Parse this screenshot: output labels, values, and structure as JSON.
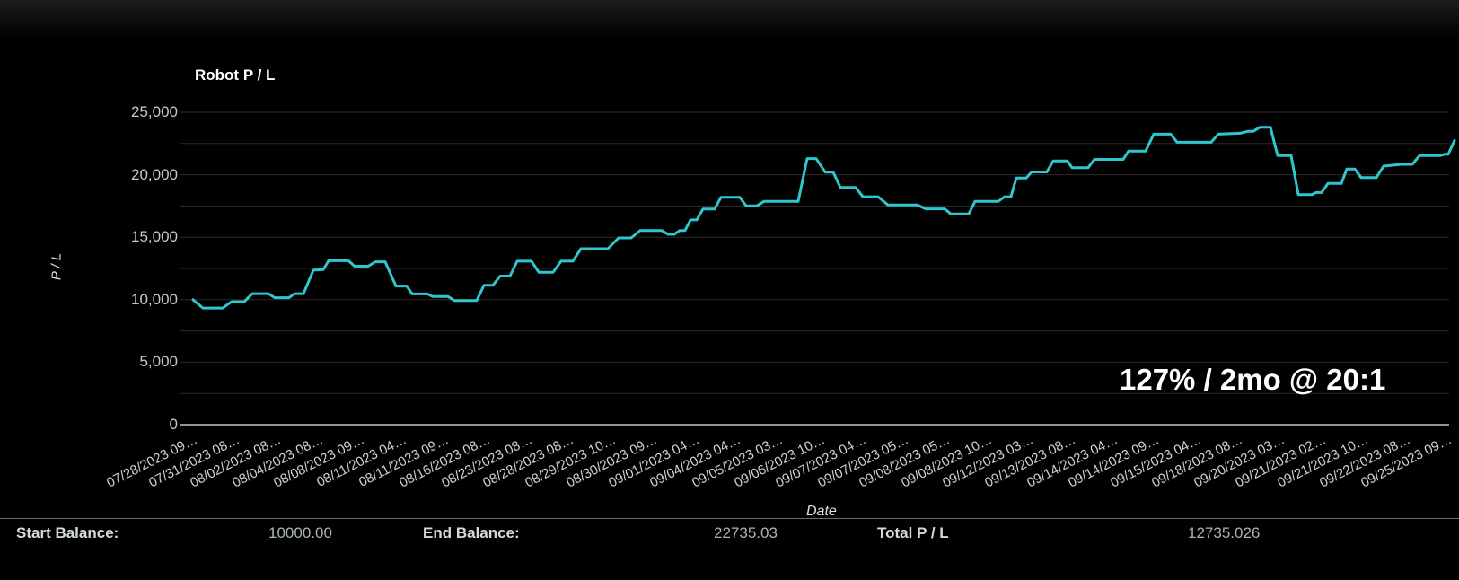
{
  "chart": {
    "title": "Robot P / L",
    "y_axis_title": "P / L",
    "x_axis_title": "Date",
    "annotation": "127% / 2mo @ 20:1"
  },
  "chart_data": {
    "type": "line",
    "title": "Robot P / L",
    "xlabel": "Date",
    "ylabel": "P / L",
    "ylim": [
      0,
      25000
    ],
    "y_gridline_interval": 2500,
    "y_label_interval": 5000,
    "y_tick_labels": [
      "0",
      "5,000",
      "10,000",
      "15,000",
      "20,000",
      "25,000"
    ],
    "grid": true,
    "legend": false,
    "x_tick_labels": [
      "07/28/2023 09…",
      "07/31/2023 08…",
      "08/02/2023 08…",
      "08/04/2023 08…",
      "08/08/2023 09…",
      "08/11/2023 04…",
      "08/11/2023 09…",
      "08/16/2023 08…",
      "08/23/2023 08…",
      "08/28/2023 08…",
      "08/29/2023 10…",
      "08/30/2023 09…",
      "09/01/2023 04…",
      "09/04/2023 04…",
      "09/05/2023 03…",
      "09/06/2023 10…",
      "09/07/2023 04…",
      "09/07/2023 05…",
      "09/08/2023 05…",
      "09/08/2023 10…",
      "09/12/2023 03…",
      "09/13/2023 08…",
      "09/14/2023 04…",
      "09/14/2023 09…",
      "09/15/2023 04…",
      "09/18/2023 08…",
      "09/20/2023 03…",
      "09/21/2023 02…",
      "09/21/2023 10…",
      "09/22/2023 08…",
      "09/25/2023 09…"
    ],
    "x_unit": "screen-px of digitized polyline (plot spans x 215 to 1620)",
    "series": [
      {
        "name": "Robot P / L",
        "color": "#2ec7ce",
        "start_value": 10000,
        "end_value": 22735,
        "points": [
          [
            215,
            9990
          ],
          [
            226,
            9330
          ],
          [
            248,
            9330
          ],
          [
            258,
            9840
          ],
          [
            272,
            9840
          ],
          [
            281,
            10480
          ],
          [
            299,
            10480
          ],
          [
            306,
            10160
          ],
          [
            322,
            10160
          ],
          [
            328,
            10480
          ],
          [
            338,
            10480
          ],
          [
            349,
            12360
          ],
          [
            360,
            12410
          ],
          [
            366,
            13120
          ],
          [
            388,
            13120
          ],
          [
            395,
            12680
          ],
          [
            410,
            12680
          ],
          [
            418,
            13030
          ],
          [
            429,
            13030
          ],
          [
            441,
            11090
          ],
          [
            453,
            11090
          ],
          [
            459,
            10460
          ],
          [
            476,
            10460
          ],
          [
            482,
            10250
          ],
          [
            499,
            10250
          ],
          [
            506,
            9930
          ],
          [
            531,
            9930
          ],
          [
            539,
            11160
          ],
          [
            549,
            11160
          ],
          [
            557,
            11890
          ],
          [
            568,
            11890
          ],
          [
            576,
            13080
          ],
          [
            592,
            13080
          ],
          [
            600,
            12200
          ],
          [
            616,
            12200
          ],
          [
            625,
            13080
          ],
          [
            638,
            13080
          ],
          [
            647,
            14080
          ],
          [
            677,
            14080
          ],
          [
            689,
            14940
          ],
          [
            703,
            14940
          ],
          [
            713,
            15540
          ],
          [
            737,
            15540
          ],
          [
            744,
            15230
          ],
          [
            751,
            15230
          ],
          [
            757,
            15540
          ],
          [
            763,
            15540
          ],
          [
            769,
            16390
          ],
          [
            776,
            16390
          ],
          [
            783,
            17260
          ],
          [
            796,
            17260
          ],
          [
            803,
            18200
          ],
          [
            824,
            18200
          ],
          [
            831,
            17510
          ],
          [
            843,
            17510
          ],
          [
            851,
            17870
          ],
          [
            889,
            17870
          ],
          [
            899,
            21290
          ],
          [
            909,
            21290
          ],
          [
            919,
            20210
          ],
          [
            928,
            20210
          ],
          [
            936,
            18980
          ],
          [
            953,
            18980
          ],
          [
            961,
            18240
          ],
          [
            978,
            18240
          ],
          [
            989,
            17580
          ],
          [
            1022,
            17580
          ],
          [
            1031,
            17270
          ],
          [
            1052,
            17270
          ],
          [
            1059,
            16870
          ],
          [
            1079,
            16870
          ],
          [
            1086,
            17870
          ],
          [
            1112,
            17870
          ],
          [
            1119,
            18240
          ],
          [
            1126,
            18240
          ],
          [
            1132,
            19740
          ],
          [
            1143,
            19740
          ],
          [
            1149,
            20220
          ],
          [
            1166,
            20220
          ],
          [
            1173,
            21100
          ],
          [
            1189,
            21100
          ],
          [
            1194,
            20570
          ],
          [
            1212,
            20570
          ],
          [
            1219,
            21230
          ],
          [
            1251,
            21230
          ],
          [
            1257,
            21900
          ],
          [
            1276,
            21900
          ],
          [
            1285,
            23250
          ],
          [
            1304,
            23250
          ],
          [
            1311,
            22600
          ],
          [
            1349,
            22600
          ],
          [
            1357,
            23250
          ],
          [
            1381,
            23320
          ],
          [
            1390,
            23480
          ],
          [
            1396,
            23480
          ],
          [
            1403,
            23790
          ],
          [
            1415,
            23790
          ],
          [
            1423,
            21530
          ],
          [
            1438,
            21530
          ],
          [
            1446,
            18410
          ],
          [
            1461,
            18410
          ],
          [
            1466,
            18580
          ],
          [
            1472,
            18580
          ],
          [
            1479,
            19300
          ],
          [
            1494,
            19300
          ],
          [
            1500,
            20450
          ],
          [
            1509,
            20450
          ],
          [
            1516,
            19770
          ],
          [
            1533,
            19770
          ],
          [
            1541,
            20690
          ],
          [
            1561,
            20830
          ],
          [
            1573,
            20830
          ],
          [
            1581,
            21530
          ],
          [
            1604,
            21530
          ],
          [
            1609,
            21640
          ],
          [
            1613,
            21640
          ],
          [
            1620,
            22735
          ]
        ]
      }
    ]
  },
  "footer": {
    "items": [
      {
        "label": "Start Balance:",
        "value": "10000.00"
      },
      {
        "label": "End Balance:",
        "value": "22735.03"
      },
      {
        "label": "Total P / L",
        "value": "12735.026"
      }
    ]
  },
  "colors": {
    "background": "#000000",
    "accent_line": "#2ec7ce",
    "gridline": "#2b2b2b",
    "zero_axis": "#8f969a",
    "tick_text": "#d0d0d0",
    "title_text": "#ffffff",
    "footer_border": "#666e73",
    "footer_label": "#d3dadd",
    "footer_value": "#aab4b8"
  }
}
